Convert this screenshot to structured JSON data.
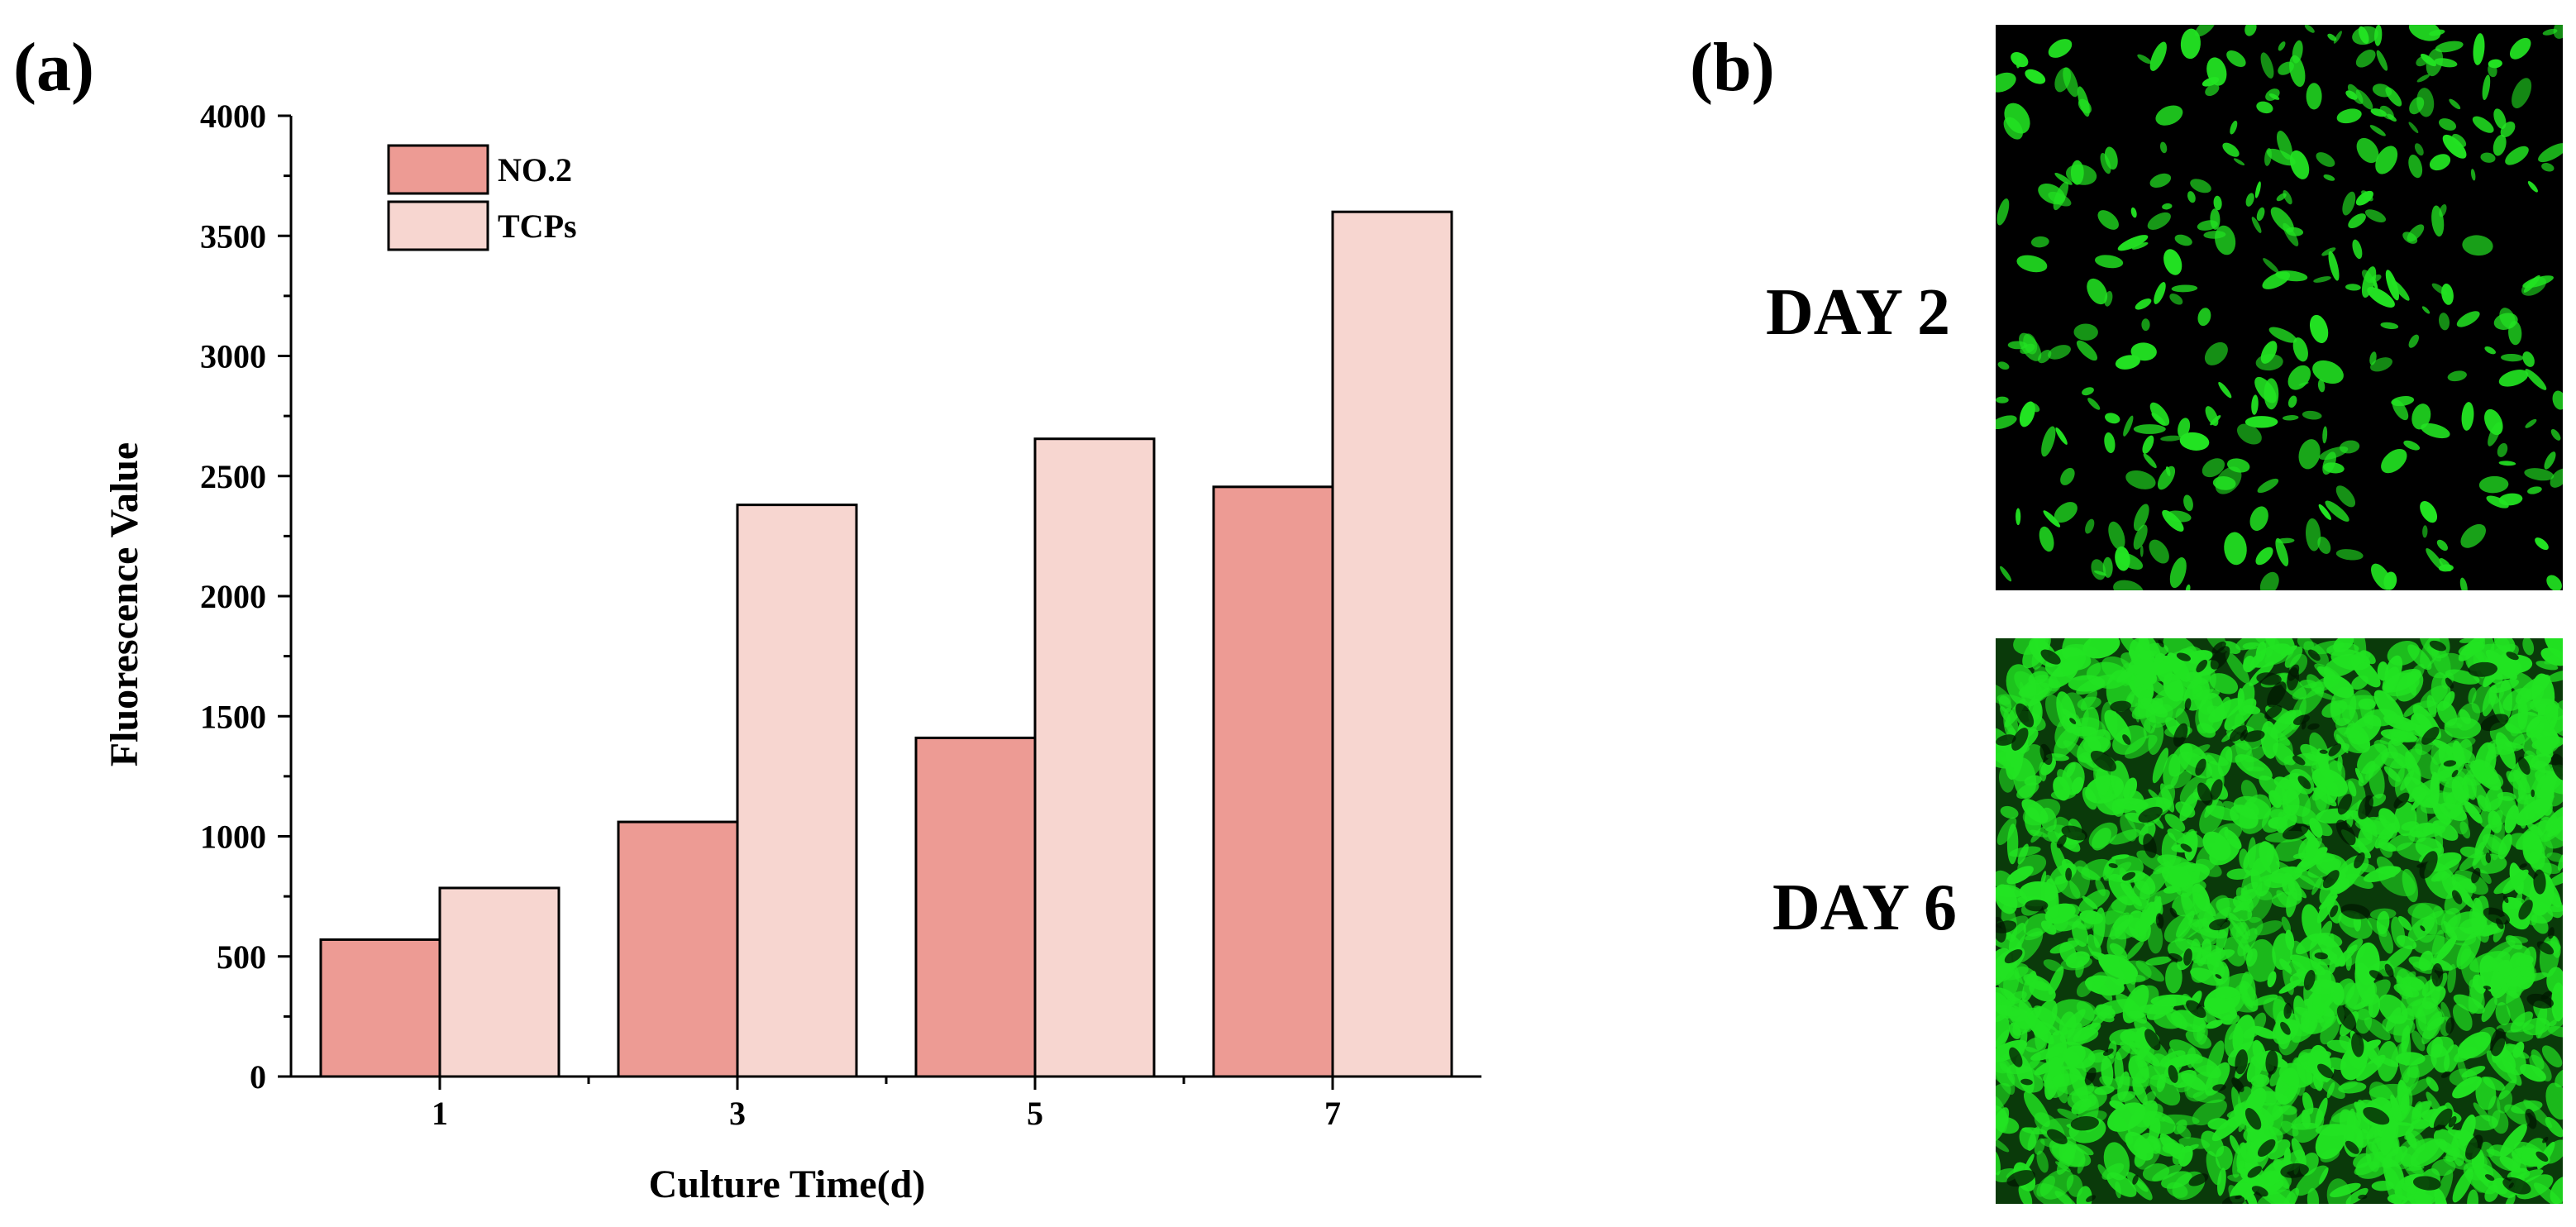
{
  "panels": {
    "a_label": "(a)",
    "b_label": "(b)"
  },
  "chart_data": {
    "type": "bar",
    "categories": [
      "1",
      "3",
      "5",
      "7"
    ],
    "series": [
      {
        "name": "NO.2",
        "values": [
          570,
          1060,
          1410,
          2455
        ],
        "color": "#ed9b94"
      },
      {
        "name": "TCPs",
        "values": [
          785,
          2380,
          2655,
          3600
        ],
        "color": "#f7d6d0"
      }
    ],
    "title": "",
    "xlabel": "Culture Time(d)",
    "ylabel": "Fluorescence Value",
    "ylim": [
      0,
      4000
    ],
    "yticks": [
      0,
      500,
      1000,
      1500,
      2000,
      2500,
      3000,
      3500,
      4000
    ],
    "grid": false,
    "legend_position": "top-left"
  },
  "images": {
    "day2_label": "DAY 2",
    "day6_label": "DAY 6",
    "stain_color": "#22e322"
  }
}
